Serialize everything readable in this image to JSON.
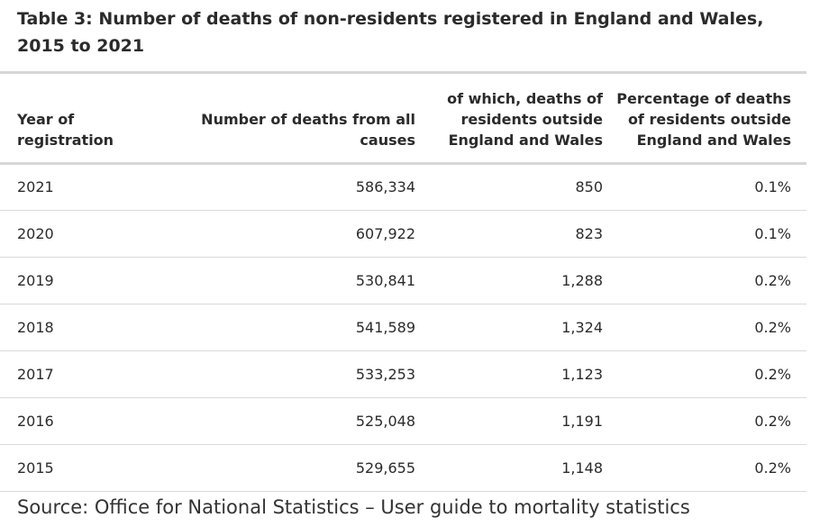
{
  "title": "Table 3: Number of deaths of non-residents registered in England and Wales, 2015 to 2021",
  "table": {
    "headers": [
      "Year of registration",
      "Number of deaths from all causes",
      "of which, deaths of residents outside England and Wales",
      "Percentage of deaths of residents outside England and Wales"
    ],
    "rows": [
      [
        "2021",
        "586,334",
        "850",
        "0.1%"
      ],
      [
        "2020",
        "607,922",
        "823",
        "0.1%"
      ],
      [
        "2019",
        "530,841",
        "1,288",
        "0.2%"
      ],
      [
        "2018",
        "541,589",
        "1,324",
        "0.2%"
      ],
      [
        "2017",
        "533,253",
        "1,123",
        "0.2%"
      ],
      [
        "2016",
        "525,048",
        "1,191",
        "0.2%"
      ],
      [
        "2015",
        "529,655",
        "1,148",
        "0.2%"
      ]
    ]
  },
  "source": "Source: Office for National Statistics – User guide to mortality statistics",
  "colors": {
    "text": "#2b2b2b",
    "rule": "#d6d6d6",
    "row_border": "#d9d9d9"
  }
}
